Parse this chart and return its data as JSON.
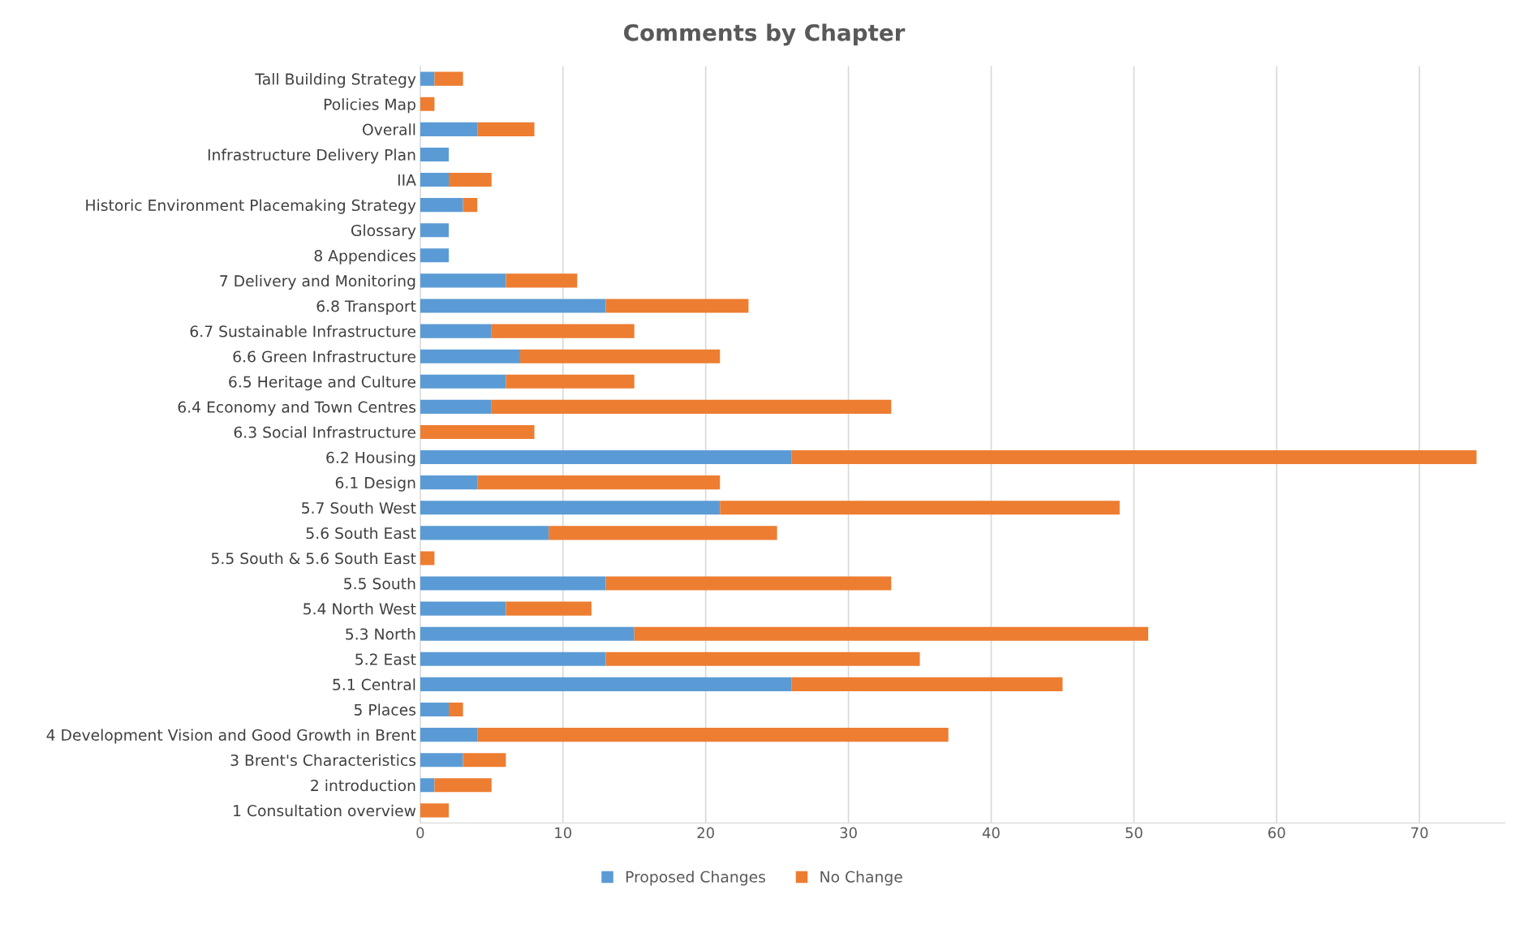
{
  "chart_data": {
    "type": "bar",
    "orientation": "horizontal",
    "stacked": true,
    "title": "Comments by Chapter",
    "categories": [
      "Tall Building Strategy",
      "Policies Map",
      "Overall",
      "Infrastructure Delivery Plan",
      "IIA",
      "Historic Environment Placemaking Strategy",
      "Glossary",
      "8 Appendices",
      "7 Delivery and Monitoring",
      "6.8 Transport",
      "6.7 Sustainable Infrastructure",
      "6.6 Green Infrastructure",
      "6.5 Heritage and Culture",
      "6.4 Economy and Town Centres",
      "6.3 Social Infrastructure",
      "6.2 Housing",
      "6.1 Design",
      "5.7 South West",
      "5.6 South East",
      "5.5 South & 5.6 South East",
      "5.5 South",
      "5.4 North West",
      "5.3 North",
      "5.2 East",
      "5.1 Central",
      "5 Places",
      "4 Development Vision and Good Growth in Brent",
      "3 Brent's Characteristics",
      "2 introduction",
      "1 Consultation overview"
    ],
    "series": [
      {
        "name": "Proposed Changes",
        "color": "#5b9bd5",
        "values": [
          1,
          0,
          4,
          2,
          2,
          3,
          2,
          2,
          6,
          13,
          5,
          7,
          6,
          5,
          0,
          26,
          4,
          21,
          9,
          0,
          13,
          6,
          15,
          13,
          26,
          2,
          4,
          3,
          1,
          0
        ]
      },
      {
        "name": "No Change",
        "color": "#ed7d31",
        "values": [
          2,
          1,
          4,
          0,
          3,
          1,
          0,
          0,
          5,
          10,
          10,
          14,
          9,
          28,
          8,
          48,
          17,
          28,
          16,
          1,
          20,
          6,
          36,
          22,
          19,
          1,
          33,
          3,
          4,
          2
        ]
      }
    ],
    "xlim": [
      0,
      76
    ],
    "xticks": [
      0,
      10,
      20,
      30,
      40,
      50,
      60,
      70
    ],
    "grid": "x",
    "legend": "bottom"
  }
}
